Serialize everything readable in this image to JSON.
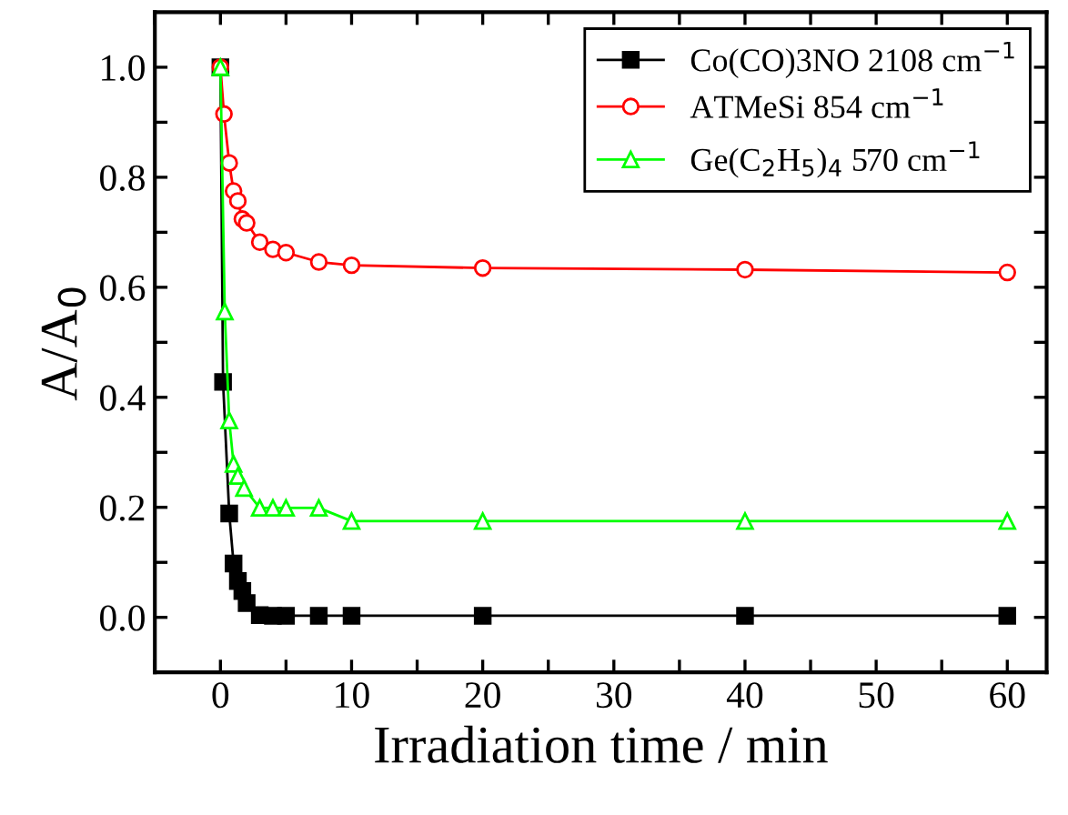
{
  "chart_data": {
    "type": "line",
    "xlabel": "Irradiation time / min",
    "ylabel": "A/A$_{0}$",
    "xlim": [
      -5,
      63
    ],
    "ylim": [
      -0.1,
      1.1
    ],
    "xticks": [
      {
        "value": -5,
        "label": null
      },
      0,
      {
        "value": 5,
        "label": null
      },
      10,
      {
        "value": 15,
        "label": null
      },
      20,
      {
        "value": 25,
        "label": null
      },
      30,
      {
        "value": 35,
        "label": null
      },
      40,
      {
        "value": 45,
        "label": null
      },
      50,
      {
        "value": 55,
        "label": null
      },
      60
    ],
    "yticks": [
      {
        "value": -0.1,
        "label": null
      },
      {
        "value": 0,
        "label": "0.0"
      },
      {
        "value": 0.1,
        "label": null
      },
      0.2,
      {
        "value": 0.3,
        "label": null
      },
      0.4,
      {
        "value": 0.5,
        "label": null
      },
      0.6,
      {
        "value": 0.7,
        "label": null
      },
      0.8,
      {
        "value": 0.9,
        "label": null
      },
      {
        "value": 1,
        "label": "1.0"
      }
    ],
    "grid": false,
    "legend": "top right",
    "line_style": "solid",
    "series": [
      {
        "name": "Co(CO)3NO 2108 cm$^{−1}$",
        "color": "#000000",
        "marker": "square",
        "x": [
          0,
          0.2,
          0.67,
          1,
          1.33,
          1.67,
          2,
          3,
          4,
          5,
          7.5,
          10,
          20,
          40,
          60
        ],
        "values": [
          1.0,
          0.428,
          0.189,
          0.098,
          0.066,
          0.048,
          0.026,
          0.004,
          0.003,
          0.003,
          0.003,
          0.003,
          0.003,
          0.003,
          0.003
        ]
      },
      {
        "name": "ATMeSi 854 cm$^{−1}$",
        "color": "#ff0000",
        "marker": "circle",
        "x": [
          0,
          0.27,
          0.67,
          1,
          1.33,
          1.67,
          2,
          3,
          4,
          5,
          7.5,
          10,
          20,
          40,
          60
        ],
        "values": [
          1.0,
          0.915,
          0.826,
          0.775,
          0.757,
          0.724,
          0.717,
          0.682,
          0.669,
          0.663,
          0.646,
          0.64,
          0.635,
          0.632,
          0.627
        ]
      },
      {
        "name": "Ge(C$_{2}$H$_{5}$)$_{4}$ 570 cm$^{−1}$",
        "color": "#00ff00",
        "marker": "triangle",
        "x": [
          0,
          0.33,
          0.67,
          1,
          1.33,
          1.8,
          3,
          4,
          5,
          7.5,
          10,
          20,
          40,
          60
        ],
        "values": [
          1.0,
          0.556,
          0.358,
          0.279,
          0.257,
          0.235,
          0.199,
          0.199,
          0.199,
          0.199,
          0.175,
          0.175,
          0.175,
          0.175
        ]
      }
    ]
  }
}
